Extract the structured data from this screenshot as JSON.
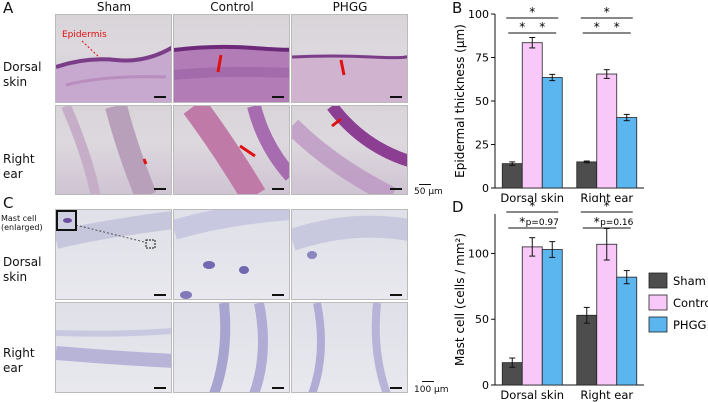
{
  "panel_labels": {
    "a": "A",
    "b": "B",
    "c": "C",
    "d": "D"
  },
  "column_headers": [
    "Sham",
    "Control",
    "PHGG"
  ],
  "row_labels_a": [
    "Dorsal\nskin",
    "Right\near"
  ],
  "row_labels_c": [
    "Dorsal\nskin",
    "Right\near"
  ],
  "annotation_epidermis": "Epidermis",
  "annotation_mastcell": "Mast cell\n(enlarged)",
  "scalebar_a": "50 μm",
  "scalebar_c": "100 μm",
  "colors": {
    "sham": "#4d4d4d",
    "control": "#f8c8f8",
    "phgg": "#5bb6f0",
    "red_marker": "#e01010"
  },
  "chart_data": [
    {
      "type": "bar",
      "ylabel": "Epidermal thickness (μm)",
      "categories": [
        "Dorsal skin",
        "Right ear"
      ],
      "ylim": [
        0,
        100
      ],
      "yticks": [
        0,
        25,
        50,
        75,
        100
      ],
      "series": [
        {
          "name": "Sham",
          "values": [
            14,
            15
          ],
          "errors": [
            1,
            0.5
          ]
        },
        {
          "name": "Control",
          "values": [
            83.5,
            65.5
          ],
          "errors": [
            3,
            2.5
          ]
        },
        {
          "name": "PHGG",
          "values": [
            63.5,
            40.5
          ],
          "errors": [
            1.8,
            1.8
          ]
        }
      ],
      "significance": [
        {
          "group": 0,
          "from": 0,
          "to": 2,
          "label": "*",
          "level": 3
        },
        {
          "group": 0,
          "from": 0,
          "to": 1,
          "label": "*",
          "level": 1
        },
        {
          "group": 0,
          "from": 1,
          "to": 2,
          "label": "*",
          "level": 1
        },
        {
          "group": 1,
          "from": 0,
          "to": 2,
          "label": "*",
          "level": 3
        },
        {
          "group": 1,
          "from": 0,
          "to": 1,
          "label": "*",
          "level": 1
        },
        {
          "group": 1,
          "from": 1,
          "to": 2,
          "label": "*",
          "level": 1
        }
      ]
    },
    {
      "type": "bar",
      "ylabel": "Mast cell (cells / mm²)",
      "categories": [
        "Dorsal skin",
        "Right ear"
      ],
      "ylim": [
        0,
        130
      ],
      "yticks": [
        0,
        50,
        100
      ],
      "series": [
        {
          "name": "Sham",
          "values": [
            17,
            53
          ],
          "errors": [
            3.5,
            6
          ]
        },
        {
          "name": "Control",
          "values": [
            105,
            107
          ],
          "errors": [
            7,
            12
          ]
        },
        {
          "name": "PHGG",
          "values": [
            103,
            82
          ],
          "errors": [
            6,
            5
          ]
        }
      ],
      "significance": [
        {
          "group": 0,
          "from": 0,
          "to": 2,
          "label": "*",
          "level": 3
        },
        {
          "group": 0,
          "from": 0,
          "to": 1,
          "label": "*",
          "level": 1
        },
        {
          "group": 0,
          "from": 1,
          "to": 2,
          "label": "p=0.97",
          "level": 1
        },
        {
          "group": 1,
          "from": 0,
          "to": 2,
          "label": "*",
          "level": 3
        },
        {
          "group": 1,
          "from": 0,
          "to": 1,
          "label": "*",
          "level": 1
        },
        {
          "group": 1,
          "from": 1,
          "to": 2,
          "label": "p=0.16",
          "level": 1
        }
      ],
      "legend": {
        "position": "right",
        "entries": [
          "Sham",
          "Control",
          "PHGG"
        ]
      }
    }
  ]
}
